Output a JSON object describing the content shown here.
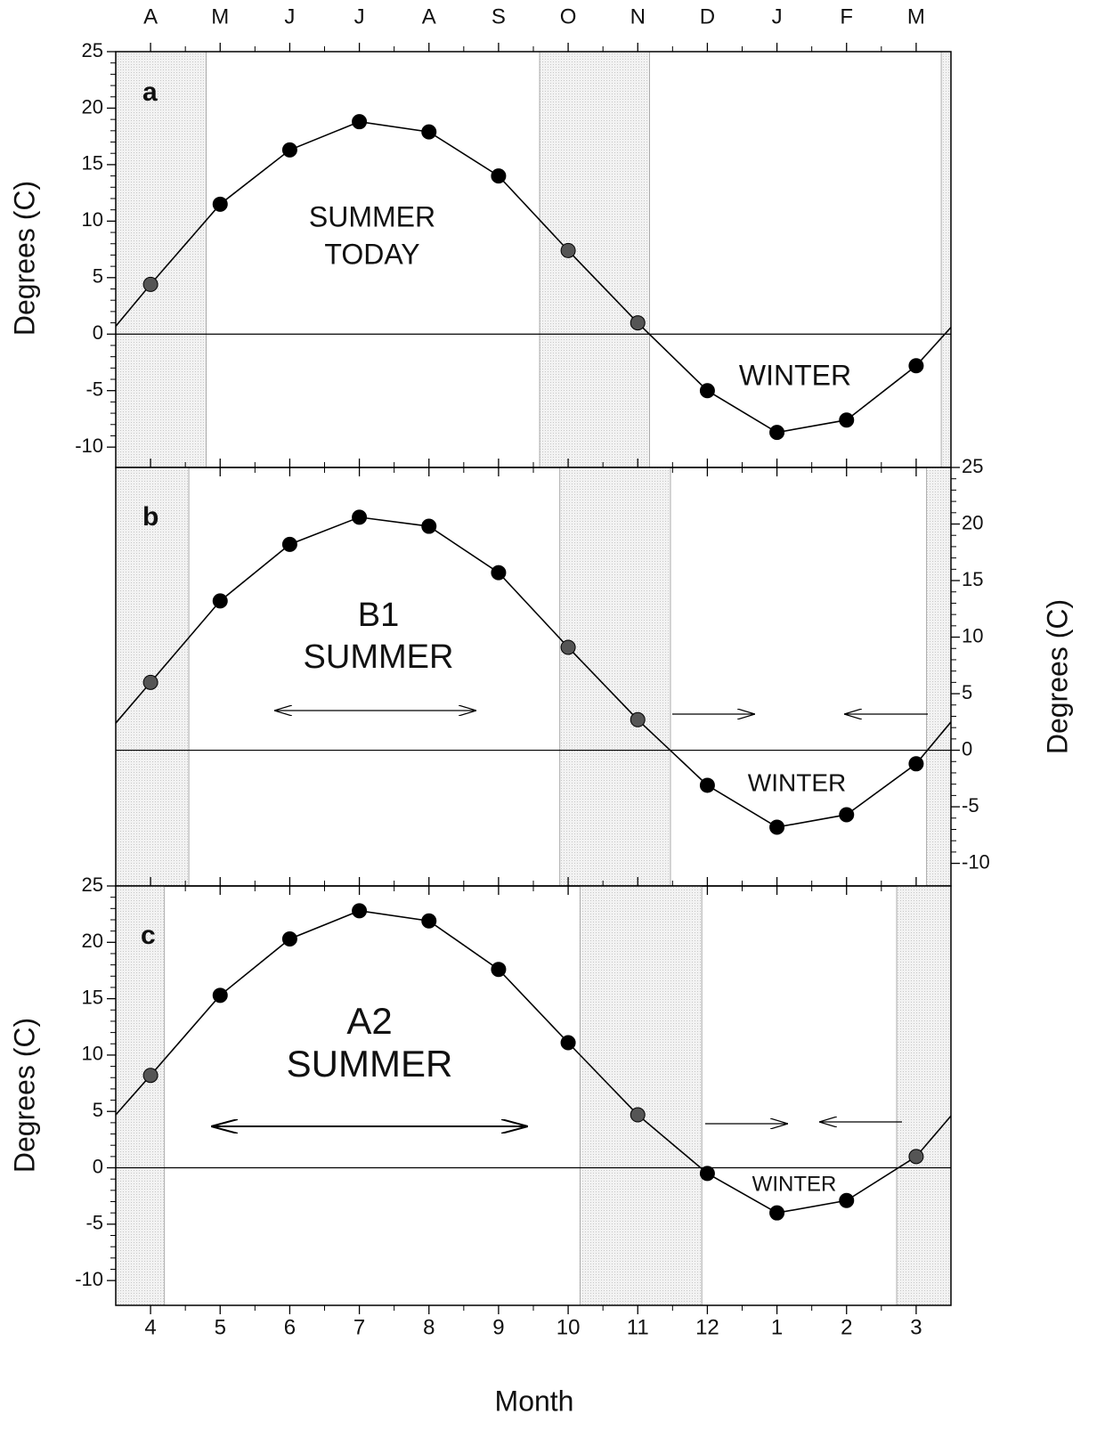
{
  "chart_data": [
    {
      "type": "line",
      "label": "a",
      "ylabel": "Degrees (C)",
      "yaxis": "left",
      "x": [
        4,
        5,
        6,
        7,
        8,
        9,
        10,
        11,
        12,
        13,
        14,
        15
      ],
      "values": [
        4.4,
        11.5,
        16.3,
        18.8,
        17.9,
        14.0,
        7.4,
        1.0,
        -5.0,
        -8.7,
        -7.6,
        -2.8
      ],
      "line_ends": [
        0.7,
        0.6
      ],
      "xlim": [
        3.5,
        15.5
      ],
      "ylim": [
        -11.8,
        25
      ],
      "yticks": [
        -10,
        -5,
        0,
        5,
        10,
        15,
        20,
        25
      ],
      "hline": 0,
      "x2ticks": [
        {
          "value": 4,
          "label": "A"
        },
        {
          "value": 5,
          "label": "M"
        },
        {
          "value": 6,
          "label": "J"
        },
        {
          "value": 7,
          "label": "J"
        },
        {
          "value": 8,
          "label": "A"
        },
        {
          "value": 9,
          "label": "S"
        },
        {
          "value": 10,
          "label": "O"
        },
        {
          "value": 11,
          "label": "N"
        },
        {
          "value": 12,
          "label": "D"
        },
        {
          "value": 13,
          "label": "J"
        },
        {
          "value": 14,
          "label": "F"
        },
        {
          "value": 15,
          "label": "M"
        }
      ],
      "shaded": [
        [
          3.5,
          4.8
        ],
        [
          9.59,
          11.17
        ],
        [
          15.36,
          15.5
        ]
      ],
      "color": "#000000",
      "shaded_marker_color": "#555555",
      "annotations": [
        {
          "lines": [
            "SUMMER",
            "TODAY"
          ]
        },
        {
          "lines": [
            "WINTER"
          ]
        }
      ]
    },
    {
      "type": "line",
      "label": "b",
      "ylabel": "Degrees (C)",
      "yaxis": "right",
      "x": [
        4,
        5,
        6,
        7,
        8,
        9,
        10,
        11,
        12,
        13,
        14,
        15
      ],
      "values": [
        6.0,
        13.2,
        18.2,
        20.6,
        19.8,
        15.7,
        9.1,
        2.7,
        -3.1,
        -6.8,
        -5.7,
        -1.2
      ],
      "line_ends": [
        2.4,
        2.5
      ],
      "xlim": [
        3.5,
        15.5
      ],
      "ylim": [
        -12,
        25
      ],
      "yticks": [
        -10,
        -5,
        0,
        5,
        10,
        15,
        20,
        25
      ],
      "hline": 0,
      "shaded": [
        [
          3.5,
          4.55
        ],
        [
          9.88,
          11.47
        ],
        [
          15.15,
          15.5
        ]
      ],
      "color": "#000000",
      "shaded_marker_color": "#555555",
      "annotations": [
        {
          "lines": [
            "B1",
            "SUMMER"
          ]
        },
        {
          "lines": [
            "WINTER"
          ]
        }
      ]
    },
    {
      "type": "line",
      "label": "c",
      "ylabel": "Degrees (C)",
      "yaxis": "left",
      "xlabel": "Month",
      "x": [
        4,
        5,
        6,
        7,
        8,
        9,
        10,
        11,
        12,
        13,
        14,
        15
      ],
      "values": [
        8.2,
        15.3,
        20.3,
        22.8,
        21.9,
        17.6,
        11.1,
        4.7,
        -0.5,
        -4.0,
        -2.9,
        1.0
      ],
      "line_ends": [
        4.7,
        4.6
      ],
      "xlim": [
        3.5,
        15.5
      ],
      "ylim": [
        -12.2,
        25
      ],
      "yticks": [
        -10,
        -5,
        0,
        5,
        10,
        15,
        20,
        25
      ],
      "hline": 0,
      "xticks": [
        4,
        5,
        6,
        7,
        8,
        9,
        10,
        11,
        12,
        {
          "value": 13,
          "label": "1"
        },
        {
          "value": 14,
          "label": "2"
        },
        {
          "value": 15,
          "label": "3"
        }
      ],
      "shaded": [
        [
          3.5,
          4.2
        ],
        [
          10.17,
          11.92
        ],
        [
          14.72,
          15.5
        ]
      ],
      "color": "#000000",
      "shaded_marker_color": "#555555",
      "annotations": [
        {
          "lines": [
            "A2",
            "SUMMER"
          ]
        },
        {
          "lines": [
            "WINTER"
          ]
        }
      ]
    }
  ]
}
